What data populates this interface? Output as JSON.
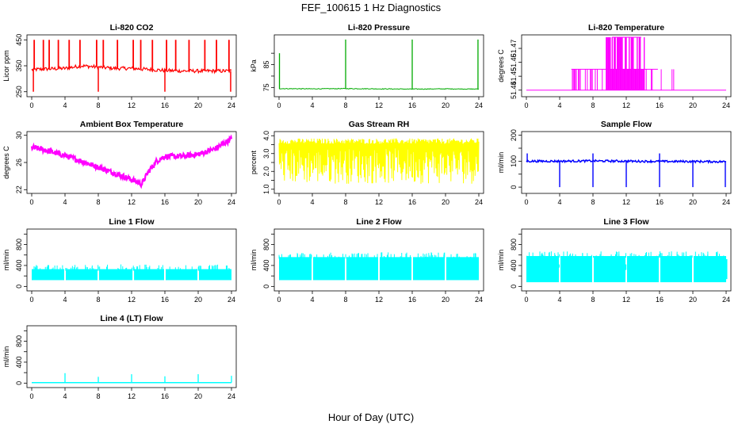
{
  "figure": {
    "title": "FEF_100615  1 Hz Diagnostics",
    "xlabel": "Hour of Day (UTC)"
  },
  "chart_data": [
    {
      "id": "co2",
      "type": "line",
      "title": "Li-820 CO2",
      "ylabel": "Licor ppm",
      "color": "#ff0000",
      "xlim": [
        0,
        24
      ],
      "ylim": [
        240,
        460
      ],
      "xticks": [
        0,
        4,
        8,
        12,
        16,
        20,
        24
      ],
      "xticklabels": [
        "0",
        "4",
        "8",
        "12",
        "16",
        "20",
        "24"
      ],
      "yticks": [
        250,
        350,
        450
      ],
      "yticklabels": [
        "250",
        "350",
        "450"
      ],
      "series": [
        {
          "x": [
            0,
            2,
            4,
            5,
            6,
            8,
            10,
            12,
            14,
            16,
            18,
            20,
            22,
            24
          ],
          "y": [
            335,
            338,
            340,
            345,
            350,
            345,
            340,
            340,
            336,
            332,
            330,
            330,
            330,
            330
          ]
        }
      ],
      "spikes_up": [
        0.3,
        1.4,
        2.1,
        3.2,
        4.5,
        5.8,
        7.8,
        8.6,
        10.3,
        12.2,
        13.1,
        14.5,
        16.2,
        17.3,
        18.9,
        20.8,
        22.2,
        23.7
      ],
      "spikes_down": [
        0.2,
        8.0,
        16.0,
        23.9
      ]
    },
    {
      "id": "pressure",
      "type": "line",
      "title": "Li-820 Pressure",
      "ylabel": "kPa",
      "color": "#00aa00",
      "xlim": [
        0,
        24
      ],
      "ylim": [
        72,
        97
      ],
      "xticks": [
        0,
        4,
        8,
        12,
        16,
        20,
        24
      ],
      "xticklabels": [
        "0",
        "4",
        "8",
        "12",
        "16",
        "20",
        "24"
      ],
      "yticks": [
        75,
        80,
        85,
        90
      ],
      "yticklabels": [
        "75",
        "",
        "85",
        ""
      ],
      "series": [
        {
          "x": [
            0,
            4,
            8,
            12,
            16,
            20,
            24
          ],
          "y": [
            74.5,
            74.4,
            74.5,
            74.4,
            74.3,
            74.4,
            74.3
          ]
        }
      ],
      "spikes": [
        {
          "x": 0.05,
          "y": 90
        },
        {
          "x": 8.0,
          "y": 96
        },
        {
          "x": 16.0,
          "y": 96
        },
        {
          "x": 23.9,
          "y": 96
        }
      ]
    },
    {
      "id": "li_temp",
      "type": "line",
      "title": "Li-820 Temperature",
      "ylabel": "degrees C",
      "color": "#ff00ff",
      "xlim": [
        0,
        24
      ],
      "ylim": [
        51.437,
        51.478
      ],
      "xticks": [
        0,
        4,
        8,
        12,
        16,
        20,
        24
      ],
      "xticklabels": [
        "0",
        "4",
        "8",
        "12",
        "16",
        "20",
        "24"
      ],
      "yticks": [
        51.44,
        51.45,
        51.46,
        51.47
      ],
      "yticklabels": [
        "51.44",
        "51.45",
        "51.46",
        "51.47"
      ],
      "base": 51.44,
      "level2": 51.455,
      "top": 51.478,
      "band_x": [
        5.4,
        15.5
      ],
      "dense_x": [
        9.5,
        14.2
      ]
    },
    {
      "id": "ambient",
      "type": "line",
      "title": "Ambient Box Temperature",
      "ylabel": "degrees C",
      "color": "#ff00ff",
      "xlim": [
        0,
        24
      ],
      "ylim": [
        21.8,
        30.2
      ],
      "xticks": [
        0,
        4,
        8,
        12,
        16,
        20,
        24
      ],
      "xticklabels": [
        "0",
        "4",
        "8",
        "12",
        "16",
        "20",
        "24"
      ],
      "yticks": [
        22,
        26,
        30
      ],
      "yticklabels": [
        "22",
        "26",
        "30"
      ],
      "series": [
        {
          "x": [
            0,
            1,
            2,
            4,
            6,
            8,
            10,
            12,
            13.2,
            14,
            15,
            16,
            18,
            20,
            22,
            24
          ],
          "y": [
            28.2,
            28.0,
            27.7,
            27.0,
            26.2,
            25.3,
            24.4,
            23.5,
            22.8,
            24.6,
            26.2,
            26.9,
            26.9,
            27.2,
            28.0,
            29.5
          ]
        }
      ]
    },
    {
      "id": "rh",
      "type": "line",
      "title": "Gas Stream RH",
      "ylabel": "percent",
      "color": "#ffff00",
      "xlim": [
        0,
        24
      ],
      "ylim": [
        0.9,
        4.1
      ],
      "xticks": [
        0,
        4,
        8,
        12,
        16,
        20,
        24
      ],
      "xticklabels": [
        "0",
        "4",
        "8",
        "12",
        "16",
        "20",
        "24"
      ],
      "yticks": [
        1.0,
        1.5,
        2.0,
        2.5,
        3.0,
        3.5,
        4.0
      ],
      "yticklabels": [
        "1.0",
        "",
        "2.0",
        "",
        "3.0",
        "",
        "4.0"
      ],
      "upper": 3.7,
      "lower": 1.3
    },
    {
      "id": "sample_flow",
      "type": "line",
      "title": "Sample Flow",
      "ylabel": "ml/min",
      "color": "#0000ff",
      "xlim": [
        0,
        24
      ],
      "ylim": [
        -15,
        205
      ],
      "xticks": [
        0,
        4,
        8,
        12,
        16,
        20,
        24
      ],
      "xticklabels": [
        "0",
        "4",
        "8",
        "12",
        "16",
        "20",
        "24"
      ],
      "yticks": [
        0,
        50,
        100,
        150,
        200
      ],
      "yticklabels": [
        "0",
        "",
        "100",
        "",
        "200"
      ],
      "series": [
        {
          "x": [
            0,
            4,
            8,
            12,
            16,
            20,
            24
          ],
          "y": [
            100,
            100,
            101,
            100,
            99,
            99,
            98
          ]
        }
      ],
      "dips": [
        4.0,
        8.0,
        12.0,
        16.0,
        20.0,
        23.9
      ],
      "peaks": [
        0.1,
        8.0,
        16.0
      ]
    },
    {
      "id": "line1",
      "type": "line",
      "title": "Line 1 Flow",
      "ylabel": "ml/min",
      "color": "#00ffff",
      "xlim": [
        0,
        24
      ],
      "ylim": [
        -40,
        1050
      ],
      "xticks": [
        0,
        4,
        8,
        12,
        16,
        20,
        24
      ],
      "xticklabels": [
        "0",
        "4",
        "8",
        "12",
        "16",
        "20",
        "24"
      ],
      "yticks": [
        0,
        200,
        400,
        600,
        800,
        1000
      ],
      "yticklabels": [
        "0",
        "",
        "400",
        "",
        "800",
        ""
      ],
      "upper": 330,
      "lower": 120,
      "gaps": [
        4.0,
        8.0,
        12.2,
        16.0,
        20.0
      ]
    },
    {
      "id": "line2",
      "type": "line",
      "title": "Line 2 Flow",
      "ylabel": "ml/min",
      "color": "#00ffff",
      "xlim": [
        0,
        24
      ],
      "ylim": [
        -40,
        1050
      ],
      "xticks": [
        0,
        4,
        8,
        12,
        16,
        20,
        24
      ],
      "xticklabels": [
        "0",
        "4",
        "8",
        "12",
        "16",
        "20",
        "24"
      ],
      "yticks": [
        0,
        200,
        400,
        600,
        800,
        1000
      ],
      "yticklabels": [
        "0",
        "",
        "400",
        "",
        "800",
        ""
      ],
      "upper": 560,
      "lower": 120,
      "gaps": [
        4.0,
        8.0,
        12.0,
        16.0,
        20.0
      ]
    },
    {
      "id": "line3",
      "type": "line",
      "title": "Line 3 Flow",
      "ylabel": "ml/min",
      "color": "#00ffff",
      "xlim": [
        0,
        24
      ],
      "ylim": [
        -40,
        1050
      ],
      "xticks": [
        0,
        4,
        8,
        12,
        16,
        20,
        24
      ],
      "xticklabels": [
        "0",
        "4",
        "8",
        "12",
        "16",
        "20",
        "24"
      ],
      "yticks": [
        0,
        200,
        400,
        600,
        800,
        1000
      ],
      "yticklabels": [
        "0",
        "",
        "400",
        "",
        "800",
        ""
      ],
      "upper": 580,
      "lower": 80,
      "gaps": [
        4.0,
        8.0,
        12.0,
        16.0,
        20.0
      ]
    },
    {
      "id": "line4",
      "type": "line",
      "title": "Line 4 (LT) Flow",
      "ylabel": "ml/min",
      "color": "#00ffff",
      "xlim": [
        0,
        24
      ],
      "ylim": [
        -40,
        1050
      ],
      "xticks": [
        0,
        4,
        8,
        12,
        16,
        20,
        24
      ],
      "xticklabels": [
        "0",
        "4",
        "8",
        "12",
        "16",
        "20",
        "24"
      ],
      "yticks": [
        0,
        200,
        400,
        600,
        800,
        1000
      ],
      "yticklabels": [
        "0",
        "",
        "400",
        "",
        "800",
        ""
      ],
      "baseline": 10,
      "spikes": [
        {
          "x": 4.0,
          "y": 190
        },
        {
          "x": 8.0,
          "y": 120
        },
        {
          "x": 12.0,
          "y": 170
        },
        {
          "x": 16.0,
          "y": 130
        },
        {
          "x": 20.0,
          "y": 170
        },
        {
          "x": 24.0,
          "y": 140
        }
      ]
    }
  ]
}
